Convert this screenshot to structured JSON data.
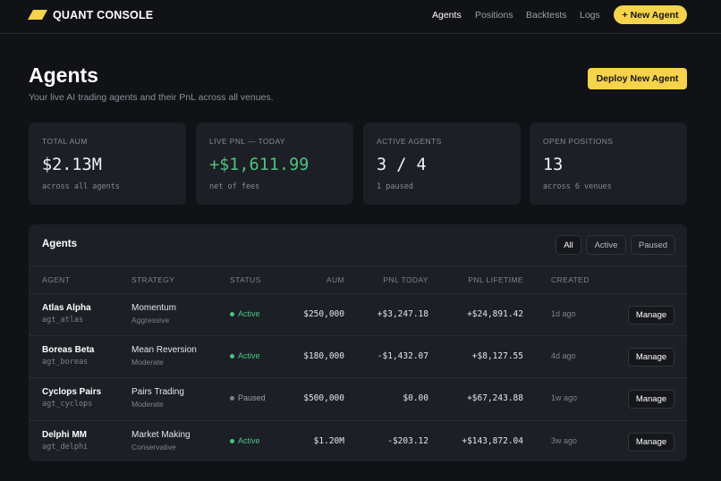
{
  "header": {
    "brand": "QUANT CONSOLE",
    "nav": [
      "Agents",
      "Positions",
      "Backtests",
      "Logs"
    ],
    "cta": "+ New Agent"
  },
  "page": {
    "title": "Agents",
    "subtitle": "Your live AI trading agents and their PnL across all venues.",
    "deploy": "Deploy New Agent"
  },
  "stats": [
    {
      "label": "Total AUM",
      "value": "$2.13M",
      "note": "across all agents"
    },
    {
      "label": "Live PnL — Today",
      "value": "+$1,611.99",
      "note": "net of fees"
    },
    {
      "label": "Active Agents",
      "value": "3 / 4",
      "note": "1 paused"
    },
    {
      "label": "Open Positions",
      "value": "13",
      "note": "across 6 venues"
    }
  ],
  "table": {
    "title": "Agents",
    "filters": [
      "All",
      "Active",
      "Paused"
    ],
    "columns": [
      "AGENT",
      "STRATEGY",
      "STATUS",
      "AUM",
      "PNL TODAY",
      "PNL LIFETIME",
      "CREATED"
    ],
    "action": "Manage",
    "rows": [
      {
        "name": "Atlas Alpha",
        "id": "agt_atlas",
        "strategy": "Momentum",
        "risk": "Aggressive",
        "status": "Active",
        "status_color": "#4ec27f",
        "aum": "$250,000",
        "pnl_today": "+$3,247.18",
        "pnl_lifetime": "+$24,891.42",
        "created": "1d ago"
      },
      {
        "name": "Boreas Beta",
        "id": "agt_boreas",
        "strategy": "Mean Reversion",
        "risk": "Moderate",
        "status": "Active",
        "status_color": "#4ec27f",
        "aum": "$180,000",
        "pnl_today": "-$1,432.07",
        "pnl_lifetime": "+$8,127.55",
        "created": "4d ago"
      },
      {
        "name": "Cyclops Pairs",
        "id": "agt_cyclops",
        "strategy": "Pairs Trading",
        "risk": "Moderate",
        "status": "Paused",
        "status_color": "#7d838d",
        "aum": "$500,000",
        "pnl_today": "$0.00",
        "pnl_lifetime": "+$67,243.88",
        "created": "1w ago"
      },
      {
        "name": "Delphi MM",
        "id": "agt_delphi",
        "strategy": "Market Making",
        "risk": "Conservative",
        "status": "Active",
        "status_color": "#4ec27f",
        "aum": "$1.20M",
        "pnl_today": "-$203.12",
        "pnl_lifetime": "+$143,872.04",
        "created": "3w ago"
      }
    ]
  }
}
